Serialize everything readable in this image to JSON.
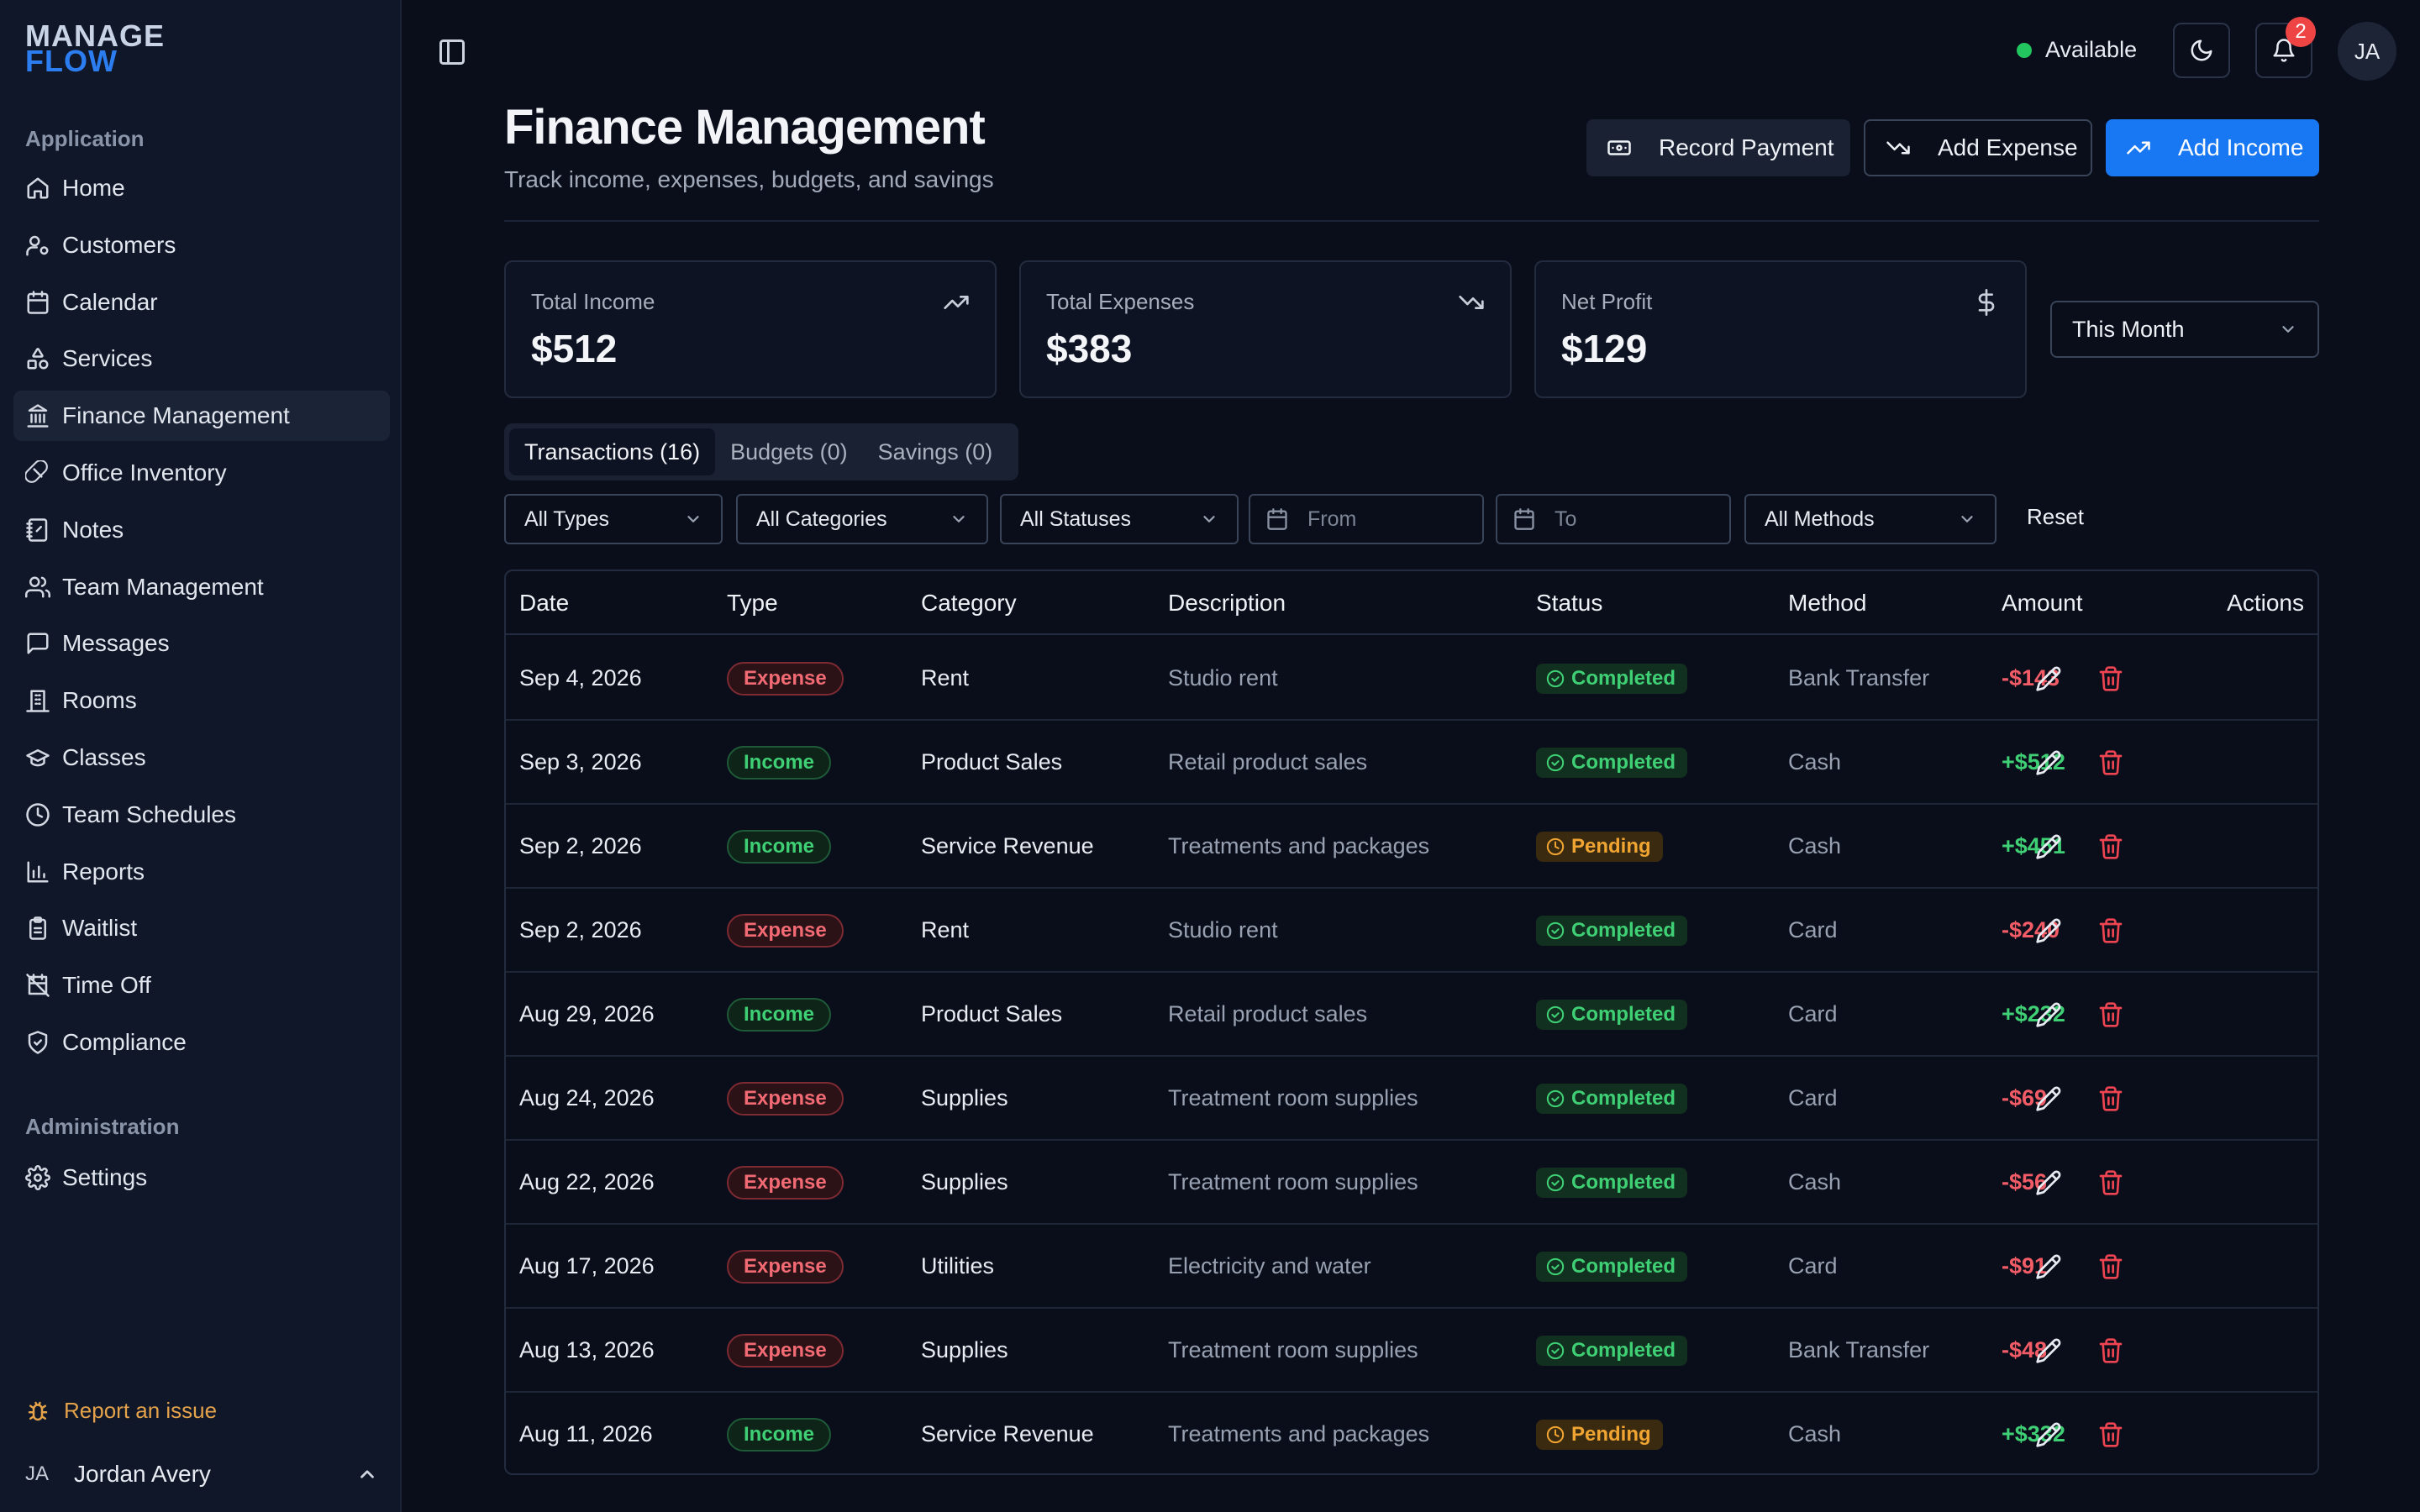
{
  "sidebar": {
    "logo_line1": "MANAGE",
    "logo_line2": "FLOW",
    "section_application": "Application",
    "section_administration": "Administration",
    "items": [
      {
        "label": "Home",
        "icon": "home-icon"
      },
      {
        "label": "Customers",
        "icon": "users-icon"
      },
      {
        "label": "Calendar",
        "icon": "calendar-icon"
      },
      {
        "label": "Services",
        "icon": "shapes-icon"
      },
      {
        "label": "Finance Management",
        "icon": "bank-icon",
        "active": true
      },
      {
        "label": "Office Inventory",
        "icon": "pill-icon"
      },
      {
        "label": "Notes",
        "icon": "notebook-icon"
      },
      {
        "label": "Team Management",
        "icon": "team-icon"
      },
      {
        "label": "Messages",
        "icon": "message-icon"
      },
      {
        "label": "Rooms",
        "icon": "building-icon"
      },
      {
        "label": "Classes",
        "icon": "graduation-cap-icon"
      },
      {
        "label": "Team Schedules",
        "icon": "clock-icon"
      },
      {
        "label": "Reports",
        "icon": "bar-chart-icon"
      },
      {
        "label": "Waitlist",
        "icon": "clipboard-icon"
      },
      {
        "label": "Time Off",
        "icon": "calendar-off-icon"
      },
      {
        "label": "Compliance",
        "icon": "shield-check-icon"
      }
    ],
    "admin_items": [
      {
        "label": "Settings",
        "icon": "gear-icon"
      }
    ],
    "report_issue": "Report an issue",
    "user_initials": "JA",
    "user_name": "Jordan Avery"
  },
  "topbar": {
    "status": "Available",
    "notification_count": "2",
    "avatar_initials": "JA"
  },
  "header": {
    "title": "Finance Management",
    "subtitle": "Track income, expenses, budgets, and savings",
    "record_payment": "Record Payment",
    "add_expense": "Add Expense",
    "add_income": "Add Income"
  },
  "stats": [
    {
      "label": "Total Income",
      "value": "$512",
      "icon": "trending-up-icon"
    },
    {
      "label": "Total Expenses",
      "value": "$383",
      "icon": "trending-down-icon"
    },
    {
      "label": "Net Profit",
      "value": "$129",
      "icon": "dollar-icon"
    }
  ],
  "period": "This Month",
  "tabs": [
    "Transactions (16)",
    "Budgets (0)",
    "Savings (0)"
  ],
  "filters": {
    "types": "All Types",
    "categories": "All Categories",
    "statuses": "All Statuses",
    "from_placeholder": "From",
    "to_placeholder": "To",
    "methods": "All Methods",
    "reset": "Reset"
  },
  "table": {
    "headers": [
      "Date",
      "Type",
      "Category",
      "Description",
      "Status",
      "Method",
      "Amount",
      "Actions"
    ],
    "rows": [
      {
        "date": "Sep 4, 2026",
        "type": "Expense",
        "category": "Rent",
        "description": "Studio rent",
        "status": "Completed",
        "method": "Bank Transfer",
        "amount": "-$143"
      },
      {
        "date": "Sep 3, 2026",
        "type": "Income",
        "category": "Product Sales",
        "description": "Retail product sales",
        "status": "Completed",
        "method": "Cash",
        "amount": "+$512"
      },
      {
        "date": "Sep 2, 2026",
        "type": "Income",
        "category": "Service Revenue",
        "description": "Treatments and packages",
        "status": "Pending",
        "method": "Cash",
        "amount": "+$451"
      },
      {
        "date": "Sep 2, 2026",
        "type": "Expense",
        "category": "Rent",
        "description": "Studio rent",
        "status": "Completed",
        "method": "Card",
        "amount": "-$240"
      },
      {
        "date": "Aug 29, 2026",
        "type": "Income",
        "category": "Product Sales",
        "description": "Retail product sales",
        "status": "Completed",
        "method": "Card",
        "amount": "+$232"
      },
      {
        "date": "Aug 24, 2026",
        "type": "Expense",
        "category": "Supplies",
        "description": "Treatment room supplies",
        "status": "Completed",
        "method": "Card",
        "amount": "-$69"
      },
      {
        "date": "Aug 22, 2026",
        "type": "Expense",
        "category": "Supplies",
        "description": "Treatment room supplies",
        "status": "Completed",
        "method": "Cash",
        "amount": "-$56"
      },
      {
        "date": "Aug 17, 2026",
        "type": "Expense",
        "category": "Utilities",
        "description": "Electricity and water",
        "status": "Completed",
        "method": "Card",
        "amount": "-$91"
      },
      {
        "date": "Aug 13, 2026",
        "type": "Expense",
        "category": "Supplies",
        "description": "Treatment room supplies",
        "status": "Completed",
        "method": "Bank Transfer",
        "amount": "-$48"
      },
      {
        "date": "Aug 11, 2026",
        "type": "Income",
        "category": "Service Revenue",
        "description": "Treatments and packages",
        "status": "Pending",
        "method": "Cash",
        "amount": "+$332"
      }
    ]
  },
  "colors": {
    "accent": "#1877f2",
    "income": "#3fcf75",
    "expense": "#f25c66",
    "pending": "#f0a431",
    "background": "#0a0e1a"
  }
}
